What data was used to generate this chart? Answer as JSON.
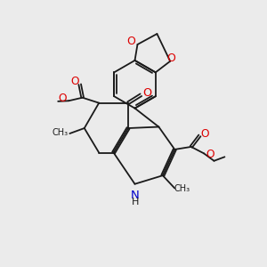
{
  "background_color": "#ebebeb",
  "bond_color": "#1a1a1a",
  "oxygen_color": "#dd0000",
  "nitrogen_color": "#0000cc",
  "bond_width": 1.3,
  "dbo": 0.07,
  "font_size": 8.0,
  "xlim": [
    0,
    10
  ],
  "ylim": [
    0,
    10
  ]
}
